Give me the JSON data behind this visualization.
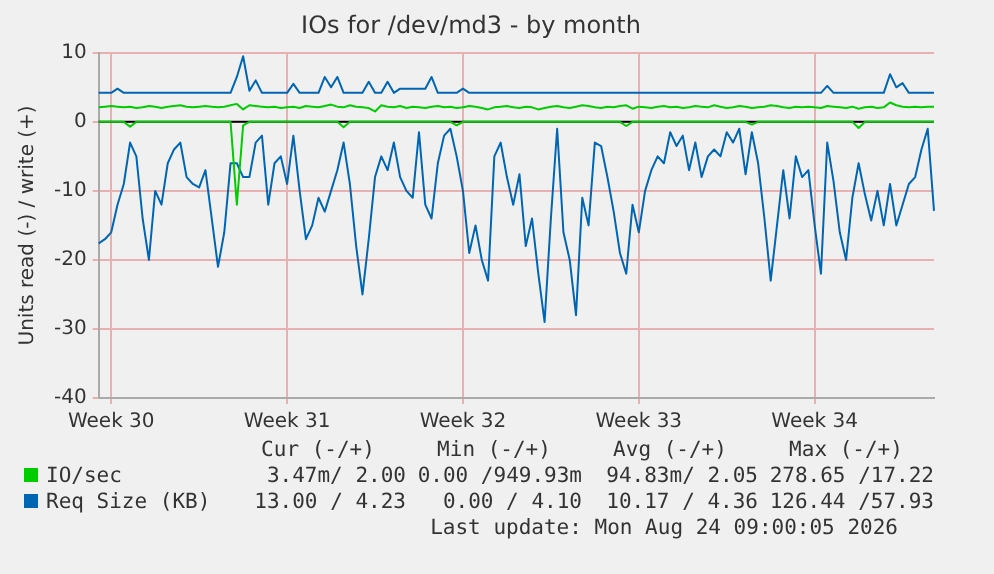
{
  "chart_data": {
    "type": "line",
    "title": "IOs for /dev/md3 - by month",
    "ylabel": "Units read (-) / write (+)",
    "categories": [
      null,
      null,
      "Week 30",
      null,
      null,
      null,
      null,
      null,
      null,
      null,
      null,
      null,
      null,
      null,
      null,
      null,
      null,
      null,
      null,
      null,
      null,
      null,
      null,
      null,
      null,
      null,
      null,
      null,
      null,
      null,
      "Week 31",
      null,
      null,
      null,
      null,
      null,
      null,
      null,
      null,
      null,
      null,
      null,
      null,
      null,
      null,
      null,
      null,
      null,
      null,
      null,
      null,
      null,
      null,
      null,
      null,
      null,
      null,
      null,
      "Week 32",
      null,
      null,
      null,
      null,
      null,
      null,
      null,
      null,
      null,
      null,
      null,
      null,
      null,
      null,
      null,
      null,
      null,
      null,
      null,
      null,
      null,
      null,
      null,
      null,
      null,
      null,
      null,
      "Week 33",
      null,
      null,
      null,
      null,
      null,
      null,
      null,
      null,
      null,
      null,
      null,
      null,
      null,
      null,
      null,
      null,
      null,
      null,
      null,
      null,
      null,
      null,
      null,
      null,
      null,
      null,
      null,
      "Week 34",
      null,
      null,
      null,
      null,
      null,
      null,
      null,
      null,
      null,
      null,
      null,
      null,
      null,
      null,
      null,
      null,
      null,
      null,
      null
    ],
    "ylim": [
      -40,
      10
    ],
    "yticks": [
      -40,
      -30,
      -20,
      -10,
      0,
      10
    ],
    "grid": true,
    "legend": "bottom",
    "marker": "none",
    "line_style": "solid",
    "ref_lines": [
      {
        "axis": "y",
        "value": 0,
        "color": "#000000"
      }
    ],
    "series": [
      {
        "name": "IO/sec",
        "color": "#00cc00",
        "values": [
          2.1,
          2.2,
          2.3,
          2.2,
          2.1,
          2.2,
          2.0,
          2.1,
          2.3,
          2.2,
          2.0,
          2.2,
          2.3,
          2.4,
          2.2,
          2.1,
          2.2,
          2.3,
          2.2,
          2.1,
          2.2,
          2.4,
          2.6,
          1.8,
          2.4,
          2.3,
          2.2,
          2.1,
          2.2,
          2.0,
          2.1,
          2.2,
          2.0,
          2.3,
          2.2,
          2.1,
          2.3,
          2.5,
          2.2,
          2.1,
          2.4,
          2.2,
          2.1,
          2.0,
          1.5,
          2.4,
          2.2,
          2.1,
          2.3,
          2.0,
          2.2,
          2.1,
          2.0,
          2.2,
          2.3,
          2.1,
          2.2,
          2.0,
          2.1,
          2.3,
          2.2,
          2.0,
          1.8,
          2.1,
          2.2,
          2.3,
          2.1,
          2.0,
          2.2,
          2.1,
          1.8,
          2.0,
          2.2,
          2.3,
          2.1,
          2.0,
          2.2,
          2.4,
          2.3,
          2.1,
          2.0,
          2.2,
          2.1,
          2.3,
          2.4,
          1.9,
          2.2,
          2.1,
          2.0,
          2.2,
          2.3,
          2.1,
          2.2,
          2.0,
          2.1,
          2.3,
          2.2,
          2.1,
          2.4,
          2.2,
          2.0,
          2.1,
          2.3,
          2.2,
          2.0,
          2.1,
          2.2,
          2.4,
          2.3,
          2.1,
          2.0,
          2.2,
          2.1,
          2.2,
          2.1,
          2.0,
          2.3,
          2.2,
          2.1,
          2.0,
          2.2,
          1.9,
          2.1,
          2.2,
          2.0,
          2.1,
          2.8,
          2.4,
          2.2,
          2.1,
          2.2,
          2.1,
          2.2,
          2.2
        ]
      },
      {
        "color": "#00cc00",
        "values": [
          0,
          0,
          0,
          0,
          0,
          -0.7,
          0,
          0,
          0,
          0,
          0,
          0,
          0,
          0,
          0,
          0,
          0,
          0,
          0,
          0,
          0,
          0,
          -12,
          -0.5,
          0,
          0,
          0,
          0,
          0,
          0,
          0,
          0,
          0,
          0,
          0,
          0,
          0,
          0,
          0,
          -0.8,
          0,
          0,
          0,
          0,
          0,
          0,
          0,
          0,
          0,
          0,
          0,
          0,
          0,
          0,
          0,
          0,
          0,
          -0.5,
          0,
          0,
          0,
          0,
          0,
          0,
          0,
          0,
          0,
          0,
          0,
          0,
          0,
          0,
          0,
          0,
          0,
          0,
          0,
          0,
          0,
          0,
          0,
          0,
          0,
          0,
          -0.6,
          0,
          0,
          0,
          0,
          0,
          0,
          0,
          0,
          0,
          0,
          0,
          0,
          0,
          0,
          0,
          0,
          0,
          0,
          0,
          -0.4,
          0,
          0,
          0,
          0,
          0,
          0,
          0,
          0,
          0,
          0,
          0,
          0,
          0,
          0,
          0,
          0,
          -0.9,
          0,
          0,
          0,
          0,
          0,
          0,
          0,
          0,
          0,
          0,
          0,
          0
        ]
      },
      {
        "name": "Req Size (KB)",
        "color": "#0066b3",
        "values": [
          4.2,
          4.2,
          4.2,
          4.8,
          4.2,
          4.2,
          4.2,
          4.2,
          4.2,
          4.2,
          4.2,
          4.2,
          4.2,
          4.2,
          4.2,
          4.2,
          4.2,
          4.2,
          4.2,
          4.2,
          4.2,
          4.2,
          6.5,
          9.5,
          4.5,
          6.0,
          4.2,
          4.2,
          4.2,
          4.2,
          4.2,
          5.5,
          4.2,
          4.2,
          4.2,
          4.2,
          6.5,
          5.0,
          6.5,
          4.2,
          4.2,
          4.2,
          4.2,
          5.8,
          4.2,
          4.2,
          5.8,
          4.2,
          4.8,
          4.8,
          4.8,
          4.8,
          4.8,
          6.5,
          4.2,
          4.2,
          4.2,
          4.2,
          4.8,
          4.2,
          4.2,
          4.2,
          4.2,
          4.2,
          4.2,
          4.2,
          4.2,
          4.2,
          4.2,
          4.2,
          4.2,
          4.2,
          4.2,
          4.2,
          4.2,
          4.2,
          4.2,
          4.2,
          4.2,
          4.2,
          4.2,
          4.2,
          4.2,
          4.2,
          4.2,
          4.2,
          4.2,
          4.2,
          4.2,
          4.2,
          4.2,
          4.2,
          4.2,
          4.2,
          4.2,
          4.2,
          4.2,
          4.2,
          4.2,
          4.2,
          4.2,
          4.2,
          4.2,
          4.2,
          4.2,
          4.2,
          4.2,
          4.2,
          4.2,
          4.2,
          4.2,
          4.2,
          4.2,
          4.2,
          4.2,
          4.2,
          5.2,
          4.2,
          4.2,
          4.2,
          4.2,
          4.2,
          4.2,
          4.2,
          4.2,
          4.2,
          6.9,
          5.0,
          5.6,
          4.2,
          4.2,
          4.2,
          4.2,
          4.2
        ]
      },
      {
        "color": "#0066b3",
        "values": [
          -17.6,
          -17,
          -16,
          -12,
          -9,
          -3,
          -5,
          -14,
          -20,
          -10,
          -12,
          -6,
          -4,
          -3,
          -8,
          -9,
          -9.5,
          -7,
          -14,
          -21,
          -16,
          -6,
          -6,
          -8,
          -8,
          -3,
          -2,
          -12,
          -6,
          -5,
          -9,
          -2,
          -10,
          -17,
          -15,
          -11,
          -13,
          -10,
          -7,
          -3,
          -9,
          -18,
          -25,
          -17,
          -8,
          -5,
          -7,
          -3,
          -8,
          -10,
          -11,
          -1.5,
          -12,
          -14,
          -6,
          -2,
          -1,
          -5,
          -10,
          -19,
          -15,
          -20,
          -23,
          -5,
          -3,
          -8,
          -12,
          -7.6,
          -18,
          -14,
          -22,
          -29,
          -14,
          -1,
          -16,
          -20,
          -28,
          -11,
          -15,
          -3,
          -3.5,
          -8,
          -13,
          -19,
          -22,
          -12,
          -16,
          -10,
          -7,
          -5,
          -6,
          -1.5,
          -3.5,
          -2,
          -7,
          -3,
          -8,
          -5,
          -4,
          -5,
          -1.5,
          -3,
          -1,
          -7.6,
          -1.5,
          -6,
          -14,
          -23,
          -15,
          -7,
          -14,
          -5,
          -8,
          -7,
          -15,
          -22,
          -3,
          -8.6,
          -16,
          -20,
          -11,
          -6,
          -10.5,
          -14.3,
          -10,
          -15,
          -9,
          -15,
          -12,
          -9,
          -8,
          -4,
          -1,
          -12.9
        ]
      }
    ],
    "annotations": [
      "Cur (-/+)",
      "Min (-/+)",
      "Avg (-/+)",
      "Max (-/+)",
      "3.47m/ 2.00",
      "0.00 /949.93m",
      "94.83m/ 2.05",
      "278.65 /17.22",
      "13.00 / 4.23",
      "0.00 / 4.10",
      "10.17 / 4.36",
      "126.44 /57.93",
      "Last update: Mon Aug 24 09:00:05 2026"
    ]
  }
}
